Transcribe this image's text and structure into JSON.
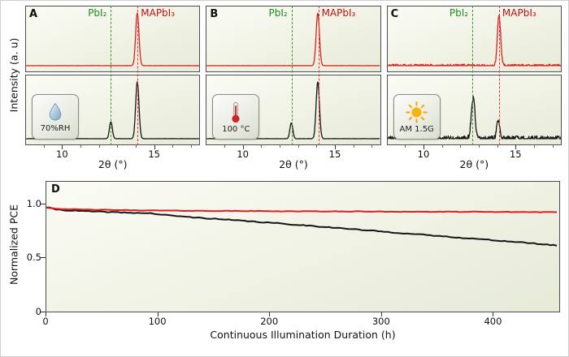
{
  "figure": {
    "top_ylabel": "Intensity (a. u)",
    "colors": {
      "trace_red": "#de1f1f",
      "trace_black": "#161616",
      "pbi2_green": "#2f9e2f",
      "mapbi3_red": "#e63333"
    }
  },
  "chart_data": [
    {
      "id": "xrd_A",
      "type": "line",
      "panel_label": "A",
      "xlabel": "2θ (°)",
      "ylabel": "Intensity (a. u)",
      "xlim": [
        8,
        17.5
      ],
      "xticks": [
        10,
        15
      ],
      "xtick_labels": [
        "10",
        "15"
      ],
      "minor_xticks": [
        9,
        11,
        12,
        13,
        14,
        16,
        17
      ],
      "condition": {
        "label": "70%RH",
        "icon": "water-droplet-icon"
      },
      "reference_lines": [
        {
          "label": "PbI₂",
          "x": 12.65,
          "color": "#2f9e2f",
          "label_color": "#1d8c1d",
          "style": "dashed"
        },
        {
          "label": "MAPbI₃",
          "x": 14.1,
          "color": "#e63333",
          "label_color": "#c01010",
          "style": "dashed"
        }
      ],
      "series": [
        {
          "name": "stressed-film-red",
          "position": "top",
          "color": "#de1f1f",
          "noise": 0.004,
          "seed": 11,
          "peaks": [
            {
              "center": 14.1,
              "height": 1.0,
              "width": 0.09
            }
          ]
        },
        {
          "name": "control-film-black",
          "position": "bottom",
          "color": "#161616",
          "noise": 0.004,
          "seed": 12,
          "peaks": [
            {
              "center": 12.65,
              "height": 0.3,
              "width": 0.08
            },
            {
              "center": 14.1,
              "height": 1.0,
              "width": 0.09
            }
          ]
        }
      ]
    },
    {
      "id": "xrd_B",
      "type": "line",
      "panel_label": "B",
      "xlabel": "2θ (°)",
      "ylabel": "Intensity (a. u)",
      "xlim": [
        8,
        17.5
      ],
      "xticks": [
        10,
        15
      ],
      "xtick_labels": [
        "10",
        "15"
      ],
      "minor_xticks": [
        9,
        11,
        12,
        13,
        14,
        16,
        17
      ],
      "condition": {
        "label": "100 °C",
        "icon": "thermometer-icon"
      },
      "reference_lines": [
        {
          "label": "PbI₂",
          "x": 12.65,
          "color": "#2f9e2f",
          "label_color": "#1d8c1d",
          "style": "dashed"
        },
        {
          "label": "MAPbI₃",
          "x": 14.1,
          "color": "#e63333",
          "label_color": "#c01010",
          "style": "dashed"
        }
      ],
      "series": [
        {
          "name": "stressed-film-red",
          "position": "top",
          "color": "#de1f1f",
          "noise": 0.004,
          "seed": 21,
          "peaks": [
            {
              "center": 14.1,
              "height": 1.0,
              "width": 0.09
            }
          ]
        },
        {
          "name": "control-film-black",
          "position": "bottom",
          "color": "#161616",
          "noise": 0.004,
          "seed": 22,
          "peaks": [
            {
              "center": 12.65,
              "height": 0.28,
              "width": 0.08
            },
            {
              "center": 14.1,
              "height": 1.0,
              "width": 0.09
            }
          ]
        }
      ]
    },
    {
      "id": "xrd_C",
      "type": "line",
      "panel_label": "C",
      "xlabel": "2θ (°)",
      "ylabel": "Intensity (a. u)",
      "xlim": [
        8,
        17.5
      ],
      "xticks": [
        10,
        15
      ],
      "xtick_labels": [
        "10",
        "15"
      ],
      "minor_xticks": [
        9,
        11,
        12,
        13,
        14,
        16,
        17
      ],
      "condition": {
        "label": "AM 1.5G",
        "icon": "sun-icon"
      },
      "reference_lines": [
        {
          "label": "PbI₂",
          "x": 12.65,
          "color": "#2f9e2f",
          "label_color": "#1d8c1d",
          "style": "dashed"
        },
        {
          "label": "MAPbI₃",
          "x": 14.1,
          "color": "#e63333",
          "label_color": "#c01010",
          "style": "dashed"
        }
      ],
      "series": [
        {
          "name": "stressed-film-red",
          "position": "top",
          "color": "#de1f1f",
          "noise": 0.028,
          "seed": 31,
          "peaks": [
            {
              "center": 14.1,
              "height": 0.95,
              "width": 0.09
            }
          ]
        },
        {
          "name": "control-film-black",
          "position": "bottom",
          "color": "#161616",
          "noise": 0.05,
          "seed": 32,
          "peaks": [
            {
              "center": 12.68,
              "height": 0.72,
              "width": 0.1
            },
            {
              "center": 14.05,
              "height": 0.3,
              "width": 0.09
            }
          ]
        }
      ]
    },
    {
      "id": "pce_D",
      "type": "line",
      "panel_label": "D",
      "xlabel": "Continuous Illumination Duration (h)",
      "ylabel": "Normalized PCE",
      "xlim": [
        0,
        460
      ],
      "ylim": [
        0,
        1.2
      ],
      "xticks": [
        0,
        100,
        200,
        300,
        400
      ],
      "xtick_labels": [
        "0",
        "100",
        "200",
        "300",
        "400"
      ],
      "yticks": [
        1.0,
        0.5,
        0
      ],
      "ytick_labels": [
        "1.0",
        "0.5",
        "0"
      ],
      "series": [
        {
          "name": "control-device-black",
          "color": "#161616",
          "noise": 0.004,
          "seed": 41,
          "x": [
            0,
            8,
            20,
            35,
            50,
            65,
            80,
            95,
            103,
            115,
            130,
            145,
            160,
            175,
            190,
            205,
            220,
            235,
            250,
            265,
            280,
            295,
            310,
            325,
            340,
            355,
            370,
            385,
            400,
            415,
            430,
            445,
            460
          ],
          "y": [
            0.965,
            0.945,
            0.935,
            0.928,
            0.922,
            0.917,
            0.912,
            0.908,
            0.895,
            0.885,
            0.872,
            0.862,
            0.85,
            0.84,
            0.828,
            0.818,
            0.805,
            0.795,
            0.782,
            0.77,
            0.757,
            0.745,
            0.732,
            0.72,
            0.708,
            0.696,
            0.684,
            0.672,
            0.66,
            0.648,
            0.636,
            0.622,
            0.608
          ]
        },
        {
          "name": "treated-device-red",
          "color": "#de1f1f",
          "noise": 0.0025,
          "seed": 42,
          "x": [
            0,
            10,
            25,
            50,
            80,
            120,
            160,
            200,
            240,
            280,
            320,
            360,
            400,
            430,
            460
          ],
          "y": [
            0.962,
            0.95,
            0.944,
            0.94,
            0.936,
            0.932,
            0.93,
            0.928,
            0.926,
            0.925,
            0.923,
            0.922,
            0.921,
            0.92,
            0.918
          ]
        }
      ]
    }
  ]
}
